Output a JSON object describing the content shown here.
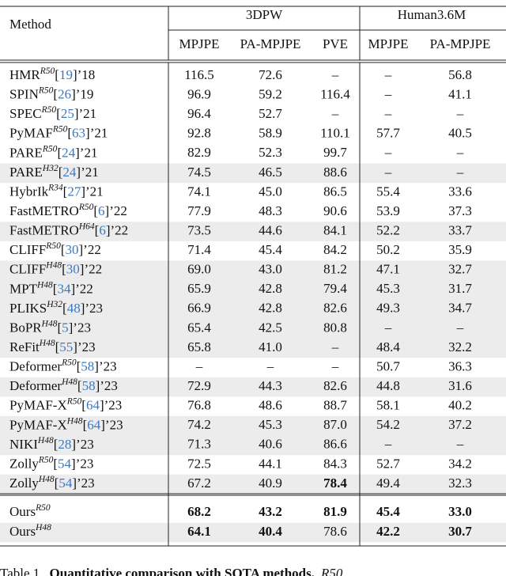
{
  "header": {
    "method": "Method",
    "groups": [
      "3DPW",
      "Human3.6M"
    ],
    "columns": [
      "MPJPE",
      "PA-MPJPE",
      "PVE",
      "MPJPE",
      "PA-MPJPE"
    ]
  },
  "brackets": [
    "[",
    "]"
  ],
  "table": {
    "rows": [
      {
        "name": "HMR",
        "sup": "R50",
        "ref": "19",
        "year": "’18",
        "cells": [
          "116.5",
          "72.6",
          "–",
          "–",
          "56.8"
        ]
      },
      {
        "name": "SPIN",
        "sup": "R50",
        "ref": "26",
        "year": "’19",
        "cells": [
          "96.9",
          "59.2",
          "116.4",
          "–",
          "41.1"
        ]
      },
      {
        "name": "SPEC",
        "sup": "R50",
        "ref": "25",
        "year": "’21",
        "cells": [
          "96.4",
          "52.7",
          "–",
          "–",
          "–"
        ]
      },
      {
        "name": "PyMAF",
        "sup": "R50",
        "ref": "63",
        "year": "’21",
        "cells": [
          "92.8",
          "58.9",
          "110.1",
          "57.7",
          "40.5"
        ]
      },
      {
        "name": "PARE",
        "sup": "R50",
        "ref": "24",
        "year": "’21",
        "cells": [
          "82.9",
          "52.3",
          "99.7",
          "–",
          "–"
        ]
      },
      {
        "name": "PARE",
        "sup": "H32",
        "ref": "24",
        "year": "’21",
        "cells": [
          "74.5",
          "46.5",
          "88.6",
          "–",
          "–"
        ],
        "shaded": true
      },
      {
        "name": "HybrIk",
        "sup": "R34",
        "ref": "27",
        "year": "’21",
        "cells": [
          "74.1",
          "45.0",
          "86.5",
          "55.4",
          "33.6"
        ]
      },
      {
        "name": "FastMETRO",
        "sup": "R50",
        "ref": "6",
        "year": "’22",
        "cells": [
          "77.9",
          "48.3",
          "90.6",
          "53.9",
          "37.3"
        ]
      },
      {
        "name": "FastMETRO",
        "sup": "H64",
        "ref": "6",
        "year": "’22",
        "cells": [
          "73.5",
          "44.6",
          "84.1",
          "52.2",
          "33.7"
        ],
        "shaded": true
      },
      {
        "name": "CLIFF",
        "sup": "R50",
        "ref": "30",
        "year": "’22",
        "cells": [
          "71.4",
          "45.4",
          "84.2",
          "50.2",
          "35.9"
        ]
      },
      {
        "name": "CLIFF",
        "sup": "H48",
        "ref": "30",
        "year": "’22",
        "cells": [
          "69.0",
          "43.0",
          "81.2",
          "47.1",
          "32.7"
        ],
        "shaded": true
      },
      {
        "name": "MPT",
        "sup": "H48",
        "ref": "34",
        "year": "’22",
        "cells": [
          "65.9",
          "42.8",
          "79.4",
          "45.3",
          "31.7"
        ],
        "shaded": true
      },
      {
        "name": "PLIKS",
        "sup": "H32",
        "ref": "48",
        "year": "’23",
        "cells": [
          "66.9",
          "42.8",
          "82.6",
          "49.3",
          "34.7"
        ],
        "shaded": true
      },
      {
        "name": "BoPR",
        "sup": "H48",
        "ref": "5",
        "year": "’23",
        "cells": [
          "65.4",
          "42.5",
          "80.8",
          "–",
          "–"
        ],
        "shaded": true
      },
      {
        "name": "ReFit",
        "sup": "H48",
        "ref": "55",
        "year": "’23",
        "cells": [
          "65.8",
          "41.0",
          "–",
          "48.4",
          "32.2"
        ],
        "shaded": true
      },
      {
        "name": "Deformer",
        "sup": "R50",
        "ref": "58",
        "year": "’23",
        "cells": [
          "–",
          "–",
          "–",
          "50.7",
          "36.3"
        ]
      },
      {
        "name": "Deformer",
        "sup": "H48",
        "ref": "58",
        "year": "’23",
        "cells": [
          "72.9",
          "44.3",
          "82.6",
          "44.8",
          "31.6"
        ],
        "shaded": true
      },
      {
        "name": "PyMAF-X",
        "sup": "R50",
        "ref": "64",
        "year": "’23",
        "cells": [
          "76.8",
          "48.6",
          "88.7",
          "58.1",
          "40.2"
        ]
      },
      {
        "name": "PyMAF-X",
        "sup": "H48",
        "ref": "64",
        "year": "’23",
        "cells": [
          "74.2",
          "45.3",
          "87.0",
          "54.2",
          "37.2"
        ],
        "shaded": true
      },
      {
        "name": "NIKI",
        "sup": "H48",
        "ref": "28",
        "year": "’23",
        "cells": [
          "71.3",
          "40.6",
          "86.6",
          "–",
          "–"
        ],
        "shaded": true
      },
      {
        "name": "Zolly",
        "sup": "R50",
        "ref": "54",
        "year": "’23",
        "cells": [
          "72.5",
          "44.1",
          "84.3",
          "52.7",
          "34.2"
        ]
      },
      {
        "name": "Zolly",
        "sup": "H48",
        "ref": "54",
        "year": "’23",
        "cells": [
          "67.2",
          "40.9",
          "78.4",
          "49.4",
          "32.3"
        ],
        "shaded": true,
        "bold": [
          2
        ]
      },
      {
        "name": "Ours",
        "sup": "R50",
        "cells": [
          "68.2",
          "43.2",
          "81.9",
          "45.4",
          "33.0"
        ],
        "bold": [
          0,
          1,
          2,
          3,
          4
        ]
      },
      {
        "name": "Ours",
        "sup": "H48",
        "cells": [
          "64.1",
          "40.4",
          "78.6",
          "42.2",
          "30.7"
        ],
        "shaded": true,
        "bold": [
          0,
          1,
          3,
          4
        ]
      }
    ]
  },
  "caption": {
    "label": "Table 1.",
    "title": "Quantitative comparison with SOTA methods.",
    "rest": "R50"
  }
}
